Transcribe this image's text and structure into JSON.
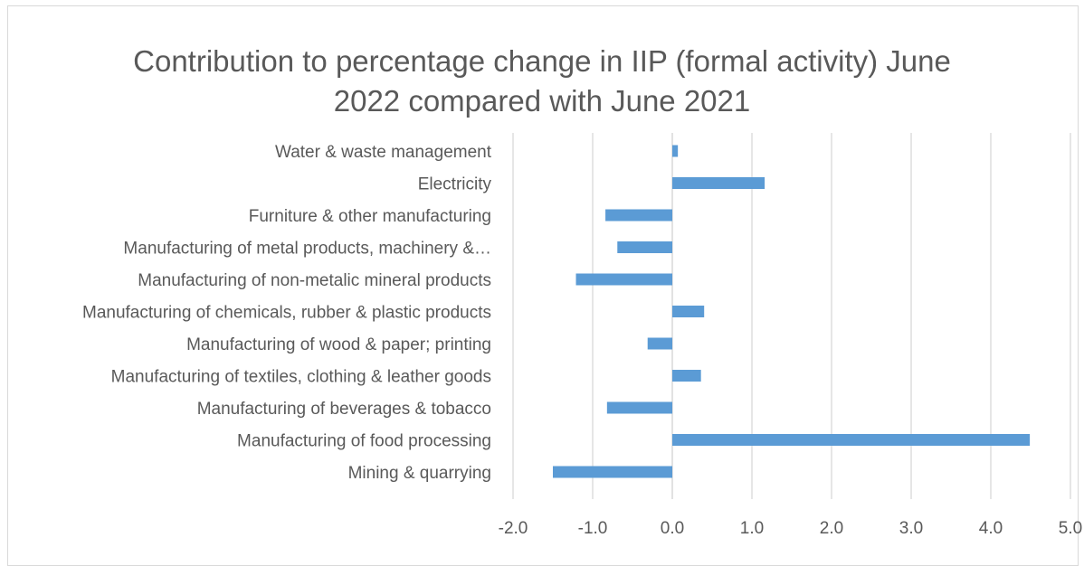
{
  "chart_data": {
    "type": "bar",
    "orientation": "horizontal",
    "title_lines": [
      "Contribution to percentage change in IIP (formal activity) June",
      "2022 compared with June 2021"
    ],
    "categories": [
      "Water & waste management",
      "Electricity",
      "Furniture & other manufacturing",
      "Manufacturing of metal products, machinery &…",
      "Manufacturing of non-metalic mineral products",
      "Manufacturing of chemicals, rubber & plastic products",
      "Manufacturing of wood & paper; printing",
      "Manufacturing of textiles, clothing & leather goods",
      "Manufacturing of beverages & tobacco",
      "Manufacturing of food processing",
      "Mining & quarrying"
    ],
    "values": [
      0.07,
      1.16,
      -0.84,
      -0.69,
      -1.21,
      0.4,
      -0.31,
      0.36,
      -0.82,
      4.49,
      -1.5
    ],
    "xlim": [
      -2.0,
      5.0
    ],
    "xticks": [
      "-2.0",
      "-1.0",
      "0.0",
      "1.0",
      "2.0",
      "3.0",
      "4.0",
      "5.0"
    ],
    "grid": "vertical",
    "legend": "none",
    "bar_color": "#5b9bd5",
    "grid_color": "#d9d9d9",
    "text_color": "#595959"
  }
}
